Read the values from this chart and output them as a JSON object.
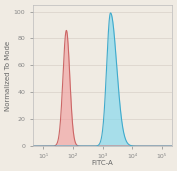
{
  "title": "",
  "xlabel": "FITC-A",
  "ylabel": "Normalized To Mode",
  "xlim_log": [
    0.65,
    5.35
  ],
  "ylim": [
    0,
    105
  ],
  "yticks": [
    0,
    20,
    40,
    60,
    80,
    100
  ],
  "xtick_positions": [
    1,
    2,
    3,
    4,
    5
  ],
  "xtick_labels": [
    "10¹",
    "10²",
    "10³",
    "10⁴",
    "10⁵"
  ],
  "red_peak_log_mean": 1.78,
  "red_peak_log_std": 0.115,
  "red_peak_height": 86,
  "blue_peak_log_mean": 3.27,
  "blue_peak_log_std": 0.13,
  "blue_peak_height": 99,
  "red_fill_color": "#f0a0a0",
  "red_line_color": "#cc6666",
  "blue_fill_color": "#80d8ee",
  "blue_line_color": "#40aacc",
  "background_color": "#f0ebe3",
  "plot_bg_color": "#f0ebe3",
  "grid_color": "#d8d0c8",
  "figsize": [
    1.77,
    1.71
  ],
  "dpi": 100
}
